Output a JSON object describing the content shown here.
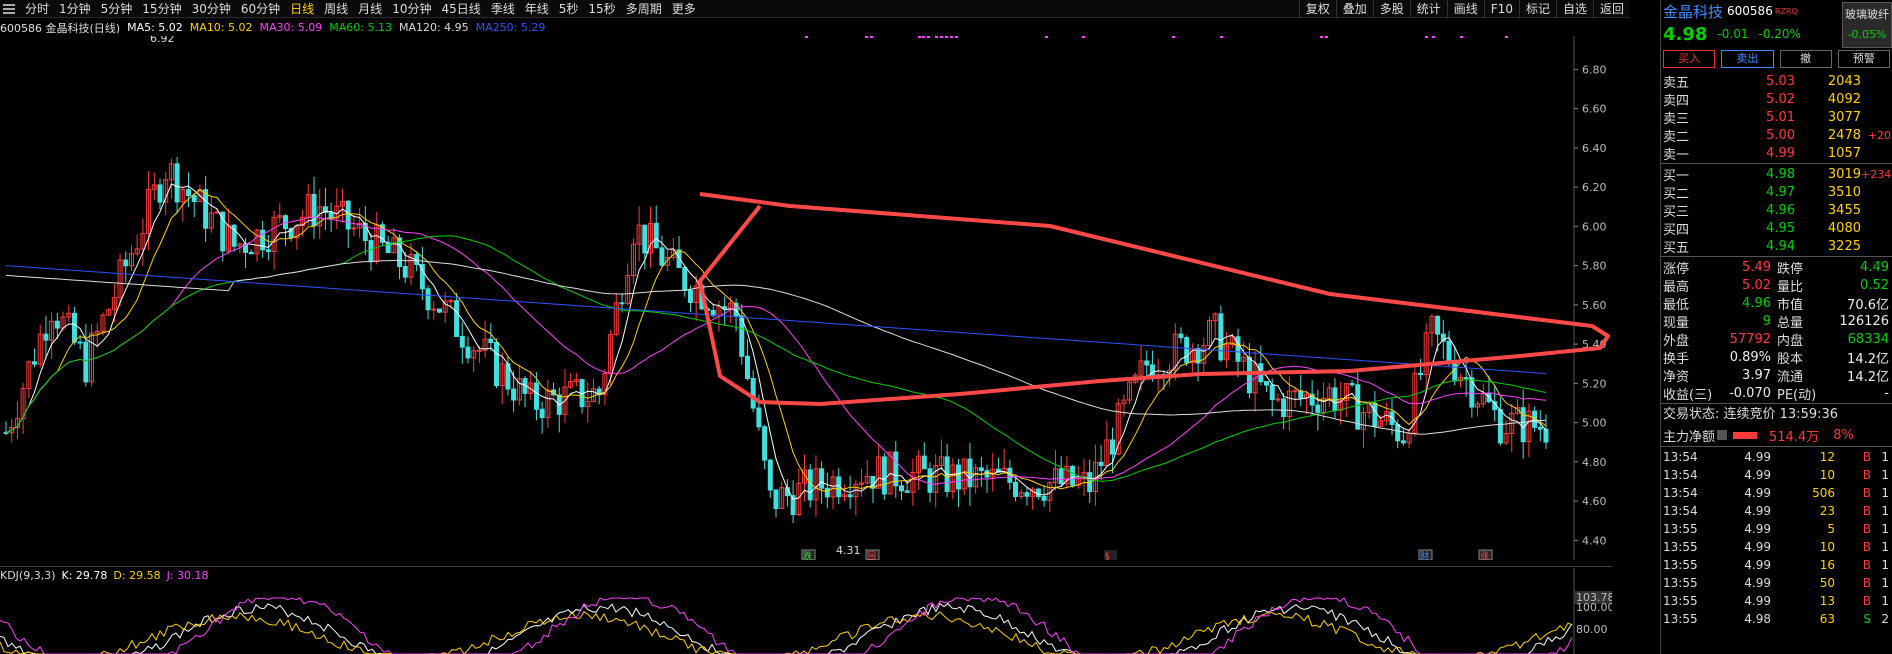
{
  "toolbar": {
    "tabs": [
      "分时",
      "1分钟",
      "5分钟",
      "15分钟",
      "30分钟",
      "60分钟",
      "日线",
      "周线",
      "月线",
      "10分钟",
      "45日线",
      "季线",
      "年线",
      "5秒",
      "15秒",
      "多周期",
      "更多"
    ],
    "active_tab": "日线",
    "right_tools": [
      "复权",
      "叠加",
      "多股",
      "统计",
      "画线",
      "F10",
      "标记",
      "自选",
      "返回"
    ]
  },
  "info": {
    "title": "600586 金晶科技(日线)",
    "ma": [
      {
        "label": "MA5: 5.02",
        "color": "#ffffff"
      },
      {
        "label": "MA10: 5.02",
        "color": "#ffd200"
      },
      {
        "label": "MA30: 5.09",
        "color": "#ff40ff"
      },
      {
        "label": "MA60: 5.13",
        "color": "#00d000"
      },
      {
        "label": "MA120: 4.95",
        "color": "#dddddd"
      },
      {
        "label": "MA250: 5.29",
        "color": "#3050ff"
      }
    ]
  },
  "chart_data": {
    "type": "candlestick",
    "y_ticks": [
      "6.80",
      "6.60",
      "6.40",
      "6.20",
      "6.00",
      "5.80",
      "5.60",
      "5.40",
      "5.20",
      "5.00",
      "4.80",
      "4.60",
      "4.40"
    ],
    "ylim": [
      4.32,
      6.96
    ],
    "high_label": "6.92",
    "low_label": "4.31",
    "markers": [
      "跌",
      "回",
      "§",
      "财",
      "涨"
    ],
    "colors": {
      "up": "#ff3a3a",
      "down": "#40e0e0",
      "ma5": "#ffffff",
      "ma10": "#ffd200",
      "ma30": "#ff40ff",
      "ma60": "#00d000",
      "ma120": "#dddddd",
      "ma250": "#3050ff",
      "annotation": "#ff4848"
    }
  },
  "kdj": {
    "title": "KDJ(9,3,3)",
    "k": "K: 29.78",
    "d": "D: 29.58",
    "j": "J: 30.18",
    "y_ticks": [
      "103.78",
      "100.00",
      "80.00"
    ]
  },
  "panel": {
    "name": "金晶科技",
    "code": "600586",
    "rz": "RZRQ",
    "tag_name": "玻璃玻纤",
    "tag_change": "-0.05%",
    "price": "4.98",
    "change": "-0.01",
    "change_pct": "-0.20%",
    "buttons": [
      "买入",
      "卖出",
      "撤",
      "预警"
    ],
    "asks": [
      {
        "label": "卖五",
        "price": "5.03",
        "vol": "2043",
        "delta": ""
      },
      {
        "label": "卖四",
        "price": "5.02",
        "vol": "4092",
        "delta": ""
      },
      {
        "label": "卖三",
        "price": "5.01",
        "vol": "3077",
        "delta": ""
      },
      {
        "label": "卖二",
        "price": "5.00",
        "vol": "2478",
        "delta": "+20"
      },
      {
        "label": "卖一",
        "price": "4.99",
        "vol": "1057",
        "delta": ""
      }
    ],
    "bids": [
      {
        "label": "买一",
        "price": "4.98",
        "vol": "3019",
        "delta": "+234"
      },
      {
        "label": "买二",
        "price": "4.97",
        "vol": "3510",
        "delta": ""
      },
      {
        "label": "买三",
        "price": "4.96",
        "vol": "3455",
        "delta": ""
      },
      {
        "label": "买四",
        "price": "4.95",
        "vol": "4080",
        "delta": ""
      },
      {
        "label": "买五",
        "price": "4.94",
        "vol": "3225",
        "delta": ""
      }
    ],
    "stats": [
      {
        "l1": "涨停",
        "v1": "5.49",
        "c1": "red",
        "l2": "跌停",
        "v2": "4.49",
        "c2": "grn"
      },
      {
        "l1": "最高",
        "v1": "5.02",
        "c1": "red",
        "l2": "量比",
        "v2": "0.52",
        "c2": "grn"
      },
      {
        "l1": "最低",
        "v1": "4.96",
        "c1": "grn",
        "l2": "市值",
        "v2": "70.6亿",
        "c2": "wht"
      },
      {
        "l1": "现量",
        "v1": "9",
        "c1": "grn",
        "l2": "总量",
        "v2": "126126",
        "c2": "wht"
      },
      {
        "l1": "外盘",
        "v1": "57792",
        "c1": "red",
        "l2": "内盘",
        "v2": "68334",
        "c2": "grn"
      },
      {
        "l1": "换手",
        "v1": "0.89%",
        "c1": "wht",
        "l2": "股本",
        "v2": "14.2亿",
        "c2": "wht"
      },
      {
        "l1": "净资",
        "v1": "3.97",
        "c1": "wht",
        "l2": "流通",
        "v2": "14.2亿",
        "c2": "wht"
      },
      {
        "l1": "收益(三)",
        "v1": "-0.070",
        "c1": "wht",
        "l2": "PE(动)",
        "v2": "-",
        "c2": "wht"
      }
    ],
    "trade_state": "交易状态: 连续竞价 13:59:36",
    "main_net_label": "主力净额",
    "main_net_value": "514.4万",
    "main_net_pct": "8%",
    "trades": [
      {
        "t": "13:54",
        "p": "4.99",
        "v": "12",
        "s": "B",
        "c": "yel",
        "sc": "red",
        "e": "1"
      },
      {
        "t": "13:54",
        "p": "4.99",
        "v": "10",
        "s": "B",
        "c": "yel",
        "sc": "red",
        "e": "1"
      },
      {
        "t": "13:54",
        "p": "4.99",
        "v": "506",
        "s": "B",
        "c": "mag",
        "sc": "red",
        "e": "1"
      },
      {
        "t": "13:54",
        "p": "4.99",
        "v": "23",
        "s": "B",
        "c": "yel",
        "sc": "red",
        "e": "1"
      },
      {
        "t": "13:55",
        "p": "4.99",
        "v": "5",
        "s": "B",
        "c": "yel",
        "sc": "red",
        "e": "1"
      },
      {
        "t": "13:55",
        "p": "4.99",
        "v": "10",
        "s": "B",
        "c": "yel",
        "sc": "red",
        "e": "1"
      },
      {
        "t": "13:55",
        "p": "4.99",
        "v": "16",
        "s": "B",
        "c": "yel",
        "sc": "red",
        "e": "1"
      },
      {
        "t": "13:55",
        "p": "4.99",
        "v": "50",
        "s": "B",
        "c": "yel",
        "sc": "red",
        "e": "1"
      },
      {
        "t": "13:55",
        "p": "4.99",
        "v": "13",
        "s": "B",
        "c": "yel",
        "sc": "red",
        "e": "1"
      },
      {
        "t": "13:55",
        "p": "4.98",
        "v": "63",
        "s": "S",
        "c": "yel",
        "sc": "grn",
        "e": "2"
      }
    ]
  }
}
